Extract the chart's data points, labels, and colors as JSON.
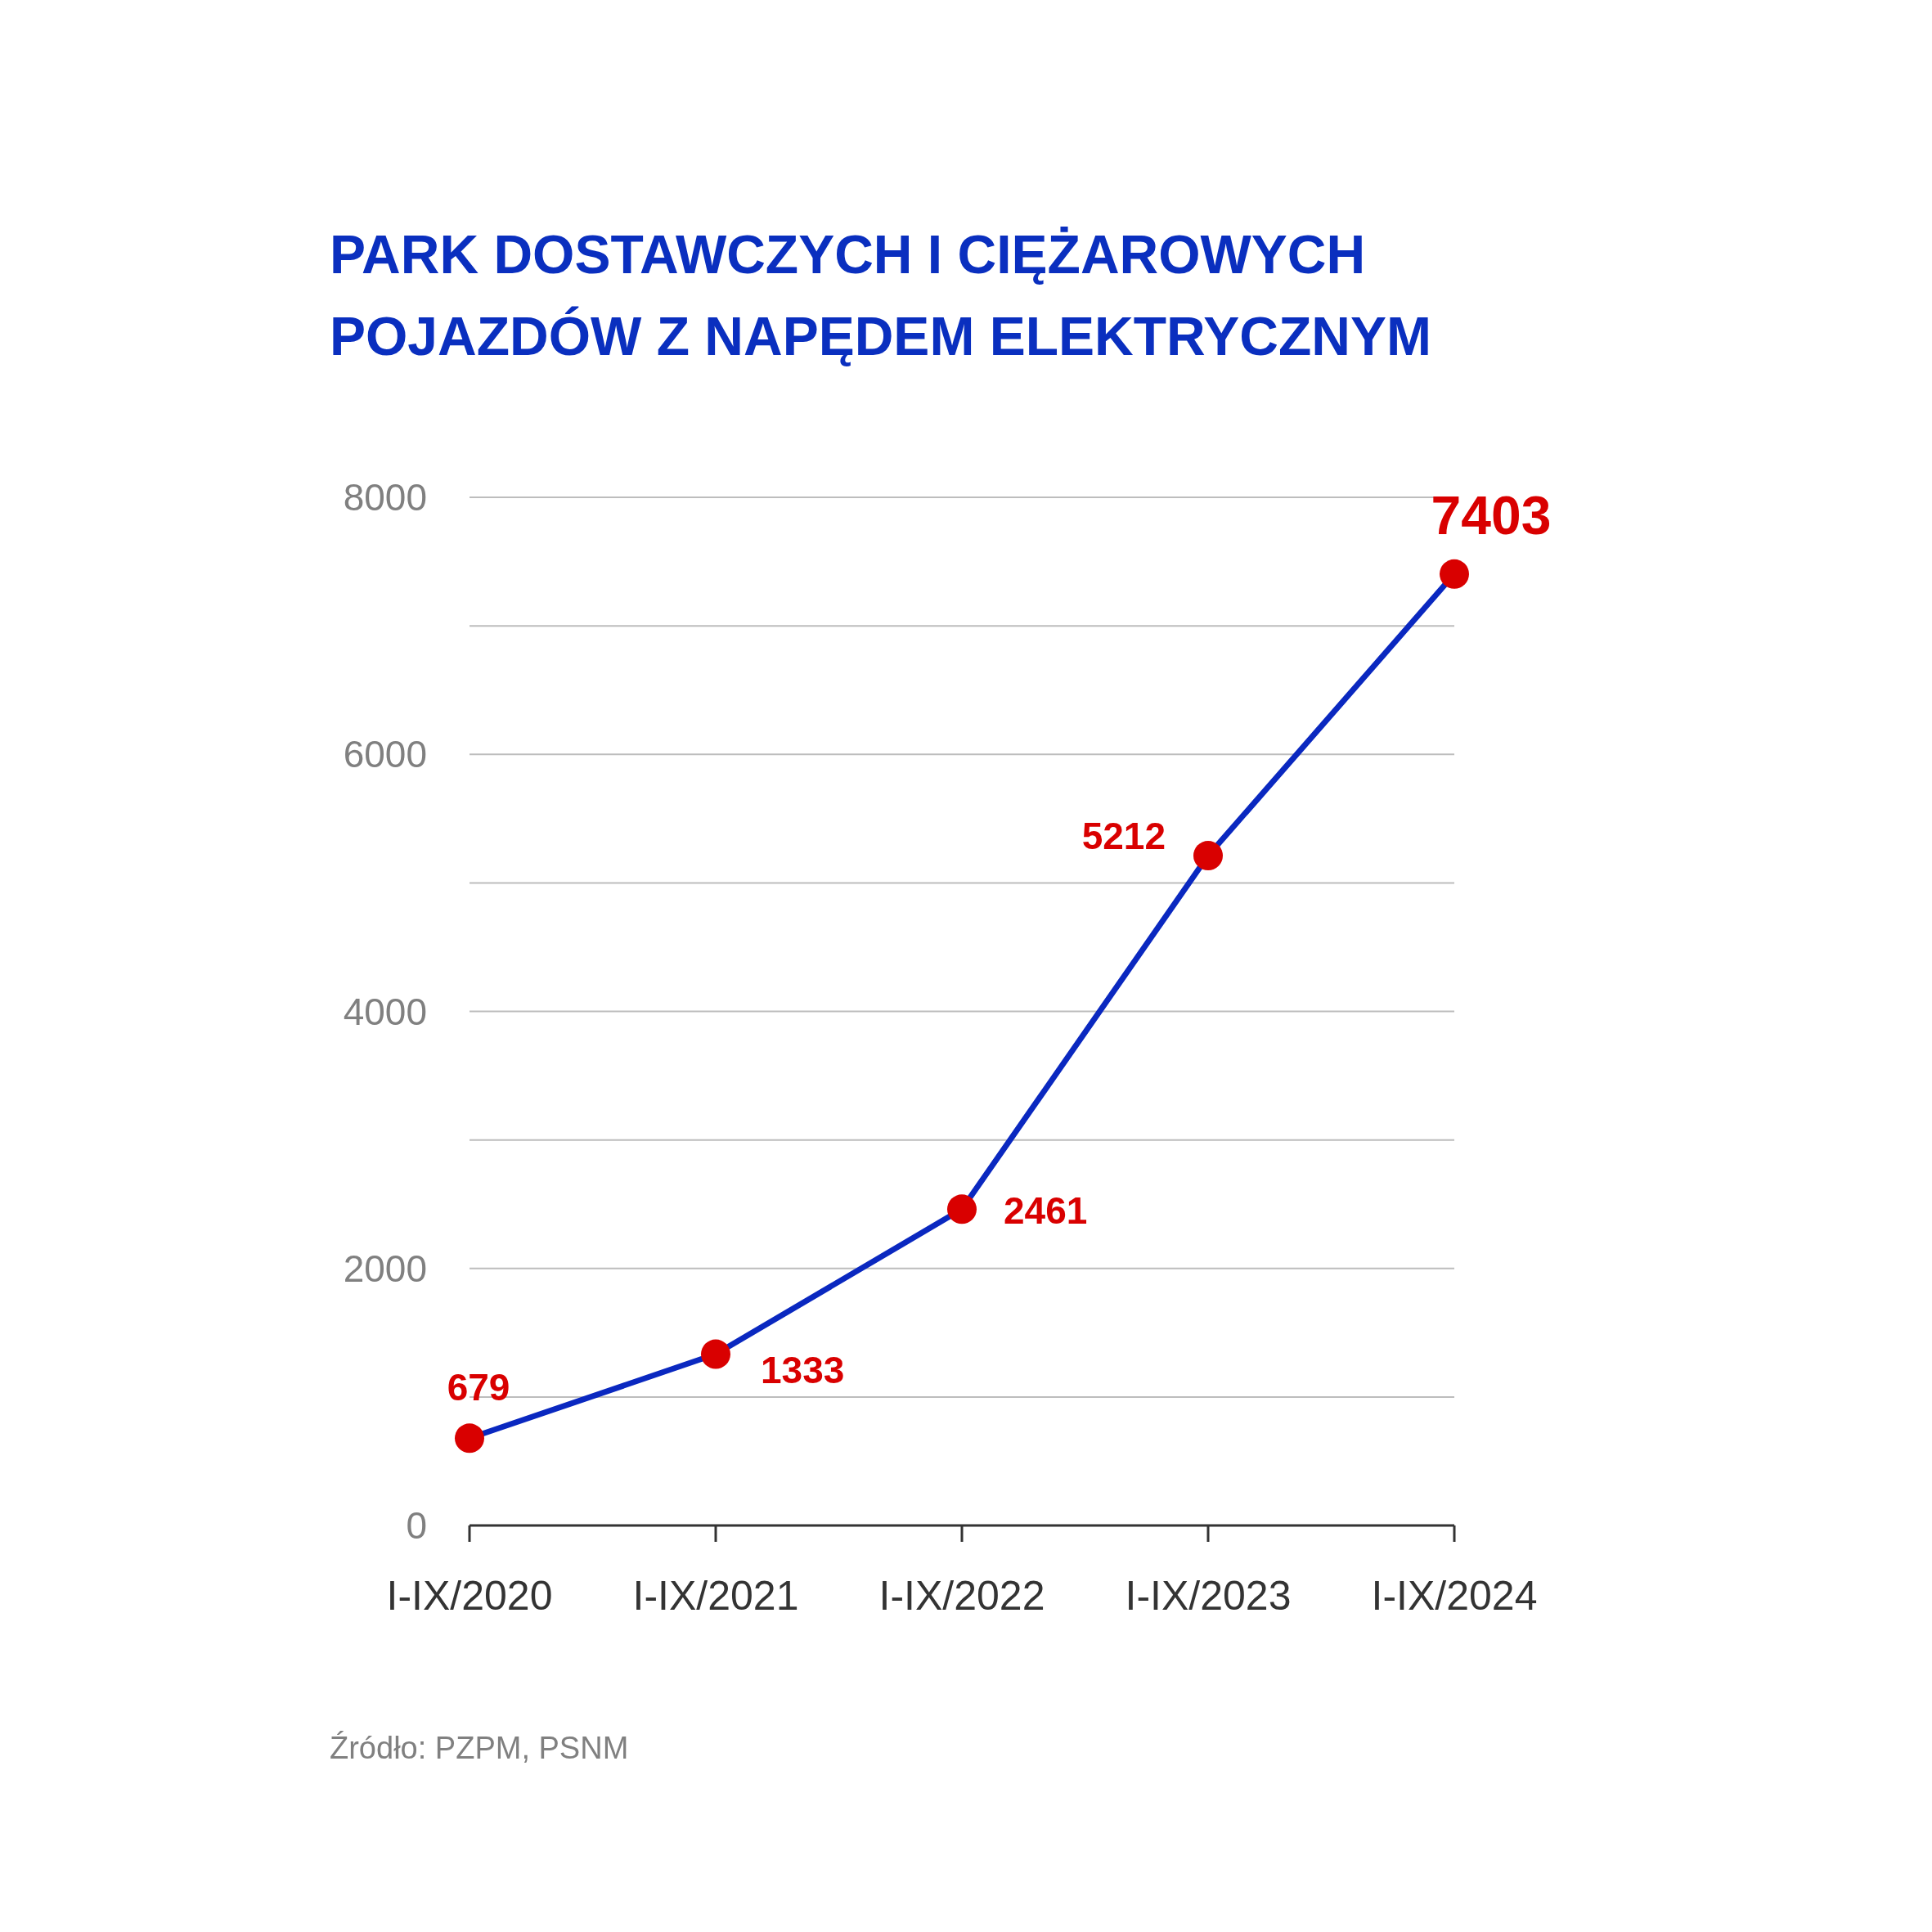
{
  "chart_data": {
    "type": "line",
    "title": "PARK DOSTAWCZYCH I CIĘŻAROWYCH POJAZDÓW Z NAPĘDEM ELEKTRYCZNYM",
    "categories": [
      "I-IX/2020",
      "I-IX/2021",
      "I-IX/2022",
      "I-IX/2023",
      "I-IX/2024"
    ],
    "series": [
      {
        "color": "#0a28c0",
        "colors": [
          "#d90000",
          "#d90000",
          "#d90000",
          "#d90000",
          "#d90000"
        ],
        "values": [
          679,
          1333,
          2461,
          5212,
          7403
        ]
      }
    ],
    "ylim": [
      0,
      8000
    ],
    "yticks": [
      0,
      {
        "value": 1000,
        "label": null
      },
      2000,
      {
        "value": 3000,
        "label": null
      },
      4000,
      {
        "value": 5000,
        "label": null
      },
      6000,
      {
        "value": 7000,
        "label": null
      },
      8000
    ],
    "grid": "y",
    "marker": "circle",
    "line_style": "solid",
    "data_labels": true,
    "annotations": [
      "Źródło: PZPM, PSNM"
    ]
  }
}
